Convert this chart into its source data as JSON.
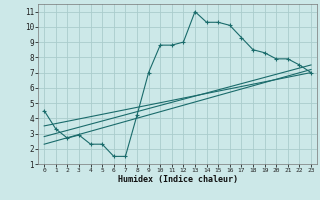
{
  "xlabel": "Humidex (Indice chaleur)",
  "bg_color": "#cce8e8",
  "grid_color": "#aacccc",
  "line_color": "#1a6b6b",
  "xlim": [
    -0.5,
    23.5
  ],
  "ylim": [
    1,
    11.5
  ],
  "xticks": [
    0,
    1,
    2,
    3,
    4,
    5,
    6,
    7,
    8,
    9,
    10,
    11,
    12,
    13,
    14,
    15,
    16,
    17,
    18,
    19,
    20,
    21,
    22,
    23
  ],
  "yticks": [
    1,
    2,
    3,
    4,
    5,
    6,
    7,
    8,
    9,
    10,
    11
  ],
  "curve1_x": [
    0,
    1,
    2,
    3,
    4,
    5,
    6,
    7,
    8,
    9,
    10,
    11,
    12,
    13,
    14,
    15,
    16,
    17,
    18,
    19,
    20,
    21,
    22,
    23
  ],
  "curve1_y": [
    4.5,
    3.3,
    2.7,
    2.9,
    2.3,
    2.3,
    1.5,
    1.5,
    4.2,
    7.0,
    8.8,
    8.8,
    9.0,
    11.0,
    10.3,
    10.3,
    10.1,
    9.3,
    8.5,
    8.3,
    7.9,
    7.9,
    7.5,
    7.0
  ],
  "curve2_x": [
    0,
    23
  ],
  "curve2_y": [
    3.5,
    7.0
  ],
  "curve3_x": [
    0,
    23
  ],
  "curve3_y": [
    2.8,
    7.5
  ],
  "curve4_x": [
    0,
    23
  ],
  "curve4_y": [
    2.3,
    7.2
  ]
}
